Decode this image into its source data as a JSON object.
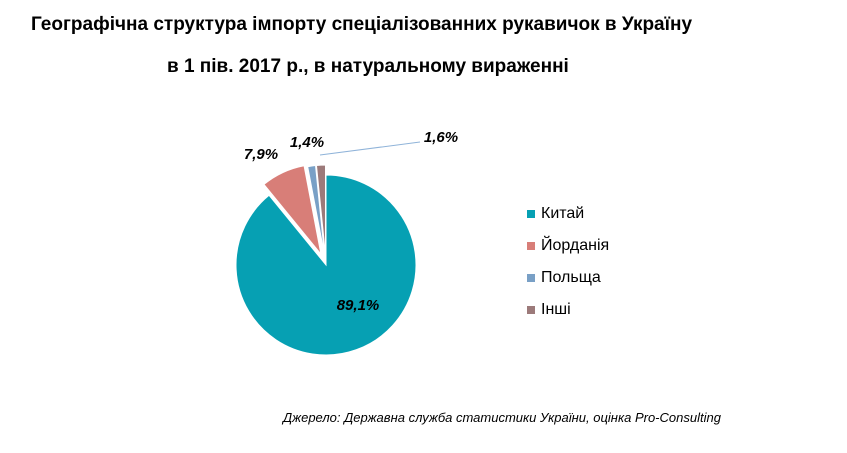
{
  "chart_data": {
    "type": "pie",
    "title": "Географічна структура імпорту спеціалізованних рукавичок в Україну",
    "subtitle": "в 1 пів. 2017 р., в натуральному вираженні",
    "slices": [
      {
        "name": "Китай",
        "value": 89.1,
        "label": "89,1%",
        "color": "#06a0b3"
      },
      {
        "name": "Йорданія",
        "value": 7.9,
        "label": "7,9%",
        "color": "#d87e78"
      },
      {
        "name": "Польща",
        "value": 1.4,
        "label": "1,4%",
        "color": "#79a0c6"
      },
      {
        "name": "Інші",
        "value": 1.6,
        "label": "1,6%",
        "color": "#9c7a7a"
      }
    ],
    "legend_position": "right"
  },
  "source": "Джерело: Державна служба статистики України, оцінка Pro-Consulting"
}
